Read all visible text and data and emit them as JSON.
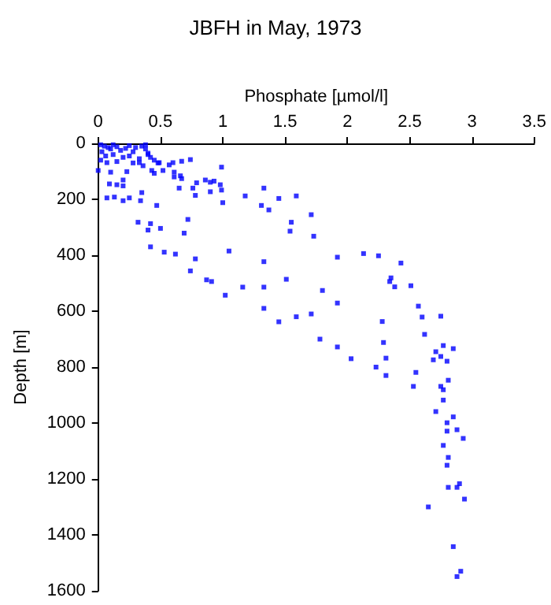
{
  "chart_data": {
    "type": "scatter",
    "title": "JBFH in May, 1973",
    "xlabel": "Phosphate [µmol/l]",
    "ylabel": "Depth [m]",
    "xlim": [
      0,
      3.5
    ],
    "xticks": [
      0,
      0.5,
      1,
      1.5,
      2,
      2.5,
      3,
      3.5
    ],
    "ylim": [
      1600,
      0
    ],
    "yticks": [
      0,
      200,
      400,
      600,
      800,
      1000,
      1200,
      1400,
      1600
    ],
    "grid": false,
    "marker": "square",
    "series": [
      {
        "color": "#0000ff",
        "x": [
          0.02,
          0.05,
          0.08,
          0.1,
          0.12,
          0.15,
          0.18,
          0.22,
          0.25,
          0.28,
          0.3,
          0.35,
          0.38,
          0.4,
          0.42,
          0.45,
          0.03,
          0.06,
          0.12,
          0.2,
          0.25,
          0.33,
          0.48,
          0.36,
          0.28,
          0.15,
          0.02,
          0.38,
          0.4,
          0.67,
          0.74,
          0.99,
          0.6,
          0.57,
          0.49,
          0.52,
          0.61,
          0.66,
          0.67,
          0.61,
          0.79,
          0.65,
          0.78,
          0.76,
          0.86,
          0.9,
          0.93,
          0.9,
          0.98,
          0.99,
          1.0,
          1.18,
          1.33,
          1.31,
          1.37,
          1.45,
          1.59,
          1.71,
          1.55,
          1.54,
          1.73,
          1.05,
          1.33,
          1.51,
          1.33,
          1.02,
          1.16,
          0.91,
          0.87,
          0.74,
          0.78,
          0.62,
          0.53,
          0.42,
          0.5,
          0.42,
          0.4,
          0.32,
          0.47,
          0.34,
          0.35,
          0.72,
          0.69,
          1.33,
          1.45,
          1.59,
          1.71,
          0.25,
          0.2,
          0.13,
          0.07,
          0.2,
          0.15,
          0.09,
          0.2,
          0.1,
          0.0,
          0.07,
          0.23,
          0.33,
          0.43,
          0.45,
          1.92,
          2.13,
          2.25,
          2.43,
          1.8,
          1.92,
          2.35,
          2.34,
          2.38,
          2.51,
          2.57,
          2.6,
          2.75,
          2.62,
          1.78,
          1.92,
          2.03,
          2.28,
          2.29,
          2.31,
          2.23,
          2.31,
          2.55,
          2.53,
          2.77,
          2.71,
          2.85,
          2.75,
          2.69,
          2.8,
          2.81,
          2.75,
          2.77,
          2.77,
          2.71,
          2.8,
          2.85,
          2.8,
          2.88,
          2.93,
          2.77,
          2.81,
          2.8,
          2.81,
          2.88,
          2.9,
          2.94,
          2.65,
          2.85,
          2.91,
          2.88
        ],
        "values": [
          5,
          10,
          15,
          20,
          5,
          12,
          25,
          18,
          8,
          30,
          15,
          10,
          20,
          35,
          50,
          60,
          30,
          45,
          40,
          50,
          45,
          55,
          70,
          80,
          70,
          65,
          60,
          5,
          40,
          64,
          58,
          85,
          69,
          77,
          69,
          97,
          103,
          116,
          126,
          120,
          141,
          160,
          186,
          160,
          131,
          139,
          135,
          173,
          148,
          167,
          212,
          188,
          160,
          222,
          238,
          197,
          188,
          255,
          282,
          314,
          332,
          385,
          423,
          486,
          514,
          543,
          514,
          494,
          488,
          456,
          413,
          396,
          389,
          370,
          304,
          287,
          310,
          282,
          222,
          205,
          176,
          272,
          321,
          590,
          638,
          620,
          610,
          195,
          205,
          192,
          195,
          152,
          148,
          145,
          131,
          103,
          97,
          69,
          101,
          69,
          97,
          107,
          407,
          394,
          402,
          428,
          526,
          571,
          481,
          494,
          513,
          509,
          582,
          621,
          618,
          683,
          700,
          728,
          770,
          637,
          712,
          768,
          800,
          830,
          819,
          869,
          723,
          745,
          734,
          762,
          774,
          779,
          847,
          869,
          881,
          918,
          959,
          999,
          978,
          1029,
          1024,
          1055,
          1080,
          1123,
          1151,
          1230,
          1230,
          1217,
          1272,
          1300,
          1442,
          1530,
          1549
        ]
      }
    ]
  }
}
